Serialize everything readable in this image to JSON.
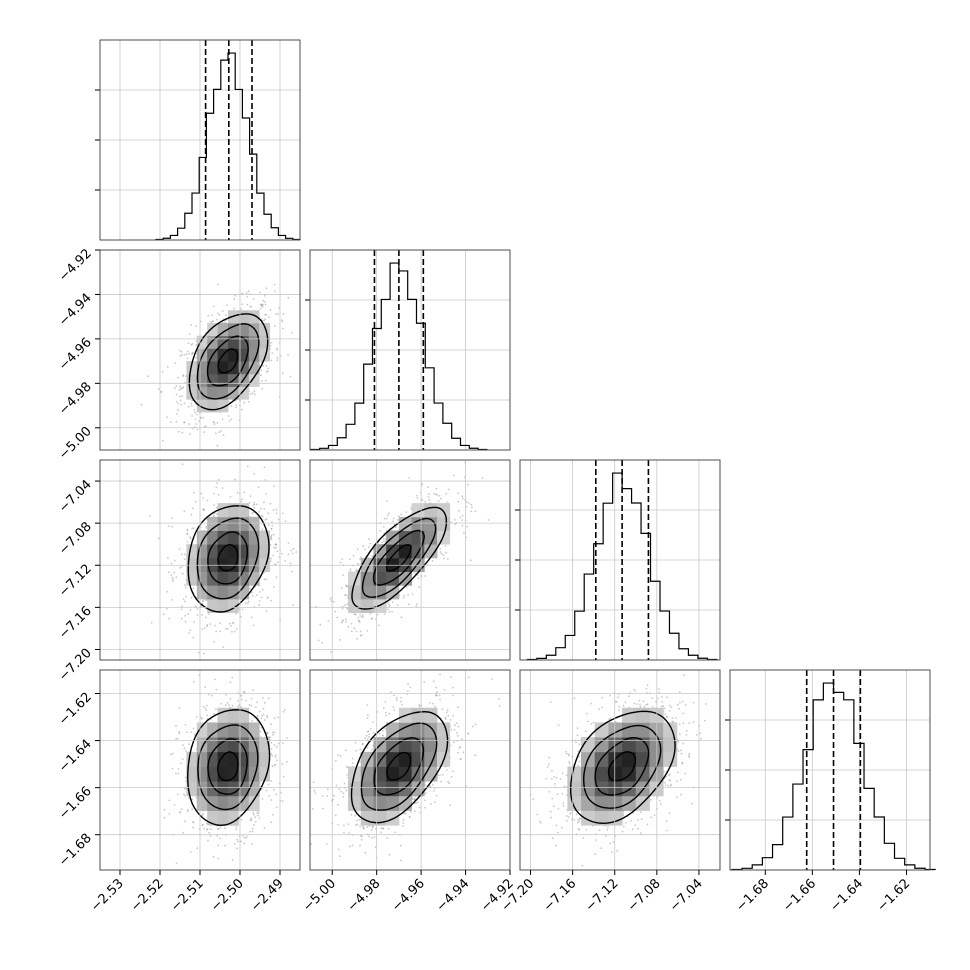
{
  "chart_data": {
    "type": "corner",
    "grid": true,
    "parameters": [
      {
        "mean": -2.503,
        "sd": 0.005,
        "range": [
          -2.535,
          -2.485
        ],
        "ticks": [
          -2.53,
          -2.52,
          -2.51,
          -2.5,
          -2.49
        ],
        "tick_labels": [
          "−2.53",
          "−2.52",
          "−2.51",
          "−2.50",
          "−2.49"
        ],
        "quantiles": [
          -2.5086,
          -2.5028,
          -2.497
        ]
      },
      {
        "mean": -4.97,
        "sd": 0.011,
        "range": [
          -5.01,
          -4.92
        ],
        "ticks": [
          -5.0,
          -4.98,
          -4.96,
          -4.94,
          -4.92
        ],
        "tick_labels": [
          "−5.00",
          "−4.98",
          "−4.96",
          "−4.94",
          "−4.92"
        ],
        "quantiles": [
          -4.981,
          -4.97,
          -4.959
        ]
      },
      {
        "mean": -7.113,
        "sd": 0.025,
        "range": [
          -7.21,
          -7.02
        ],
        "ticks": [
          -7.2,
          -7.16,
          -7.12,
          -7.08,
          -7.04
        ],
        "tick_labels": [
          "−7.20",
          "−7.16",
          "−7.12",
          "−7.08",
          "−7.04"
        ],
        "quantiles": [
          -7.138,
          -7.113,
          -7.088
        ]
      },
      {
        "mean": -1.651,
        "sd": 0.012,
        "range": [
          -1.695,
          -1.61
        ],
        "ticks": [
          -1.68,
          -1.66,
          -1.64,
          -1.62
        ],
        "tick_labels": [
          "−1.68",
          "−1.66",
          "−1.64",
          "−1.62"
        ],
        "quantiles": [
          -1.6624,
          -1.651,
          -1.6396
        ]
      }
    ],
    "correlations": [
      [
        1.0,
        0.45,
        0.2,
        0.15
      ],
      [
        0.45,
        1.0,
        0.75,
        0.5
      ],
      [
        0.2,
        0.75,
        1.0,
        0.4
      ],
      [
        0.15,
        0.5,
        0.4,
        1.0
      ]
    ],
    "contour_levels_sigma": [
      0.5,
      1.0,
      1.5,
      2.0
    ],
    "histogram_bins": 20,
    "colors": {
      "line": "#000000",
      "points": "#9a9a9a",
      "grid": "#c8c8c8",
      "frame": "#4d4d4d"
    }
  }
}
